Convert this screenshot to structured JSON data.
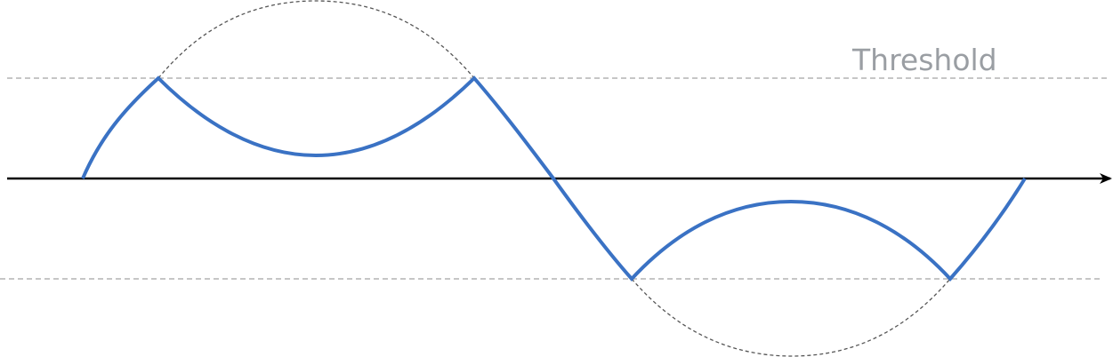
{
  "diagram": {
    "threshold_label": "Threshold",
    "colors": {
      "signal": "#3a72c4",
      "original_wave": "#555555",
      "threshold_line": "#b3b3b3",
      "threshold_text": "#9a9ea3",
      "axis": "#000000"
    }
  }
}
